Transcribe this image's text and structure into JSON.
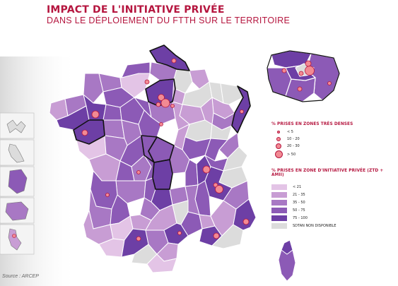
{
  "title": {
    "main": "IMPACT DE L'INITIATIVE PRIVÉE",
    "sub": "DANS LE DÉPLOIEMENT DU FTTH SUR LE TERRITOIRE"
  },
  "legend": {
    "bubbles_title": "% PRISES EN ZONES TRÈS DENSES",
    "bubbles": [
      {
        "label": "< 5"
      },
      {
        "label": "10 - 20"
      },
      {
        "label": "20 - 30"
      },
      {
        "label": "> 50"
      }
    ],
    "zones_title": "% PRISES EN ZONE D'INITIATIVE PRIVÉE (ZTD + AMII)",
    "zones": [
      {
        "label": "< 21",
        "color": "#e3c4e6"
      },
      {
        "label": "21 - 35",
        "color": "#c89dd4"
      },
      {
        "label": "35 - 50",
        "color": "#a878c4"
      },
      {
        "label": "50 - 75",
        "color": "#8c5ab6"
      },
      {
        "label": "75 - 100",
        "color": "#6d3fa5"
      },
      {
        "label": "SDTAN NON DISPONIBLE",
        "color": "#dcdcdc"
      }
    ]
  },
  "colors": {
    "title": "#b5163f",
    "bubble_fill": "#f28a93",
    "bubble_stroke": "#b5163f",
    "border": "#ffffff",
    "highlight_border": "#111111"
  },
  "source": "Source : ARCEP"
}
